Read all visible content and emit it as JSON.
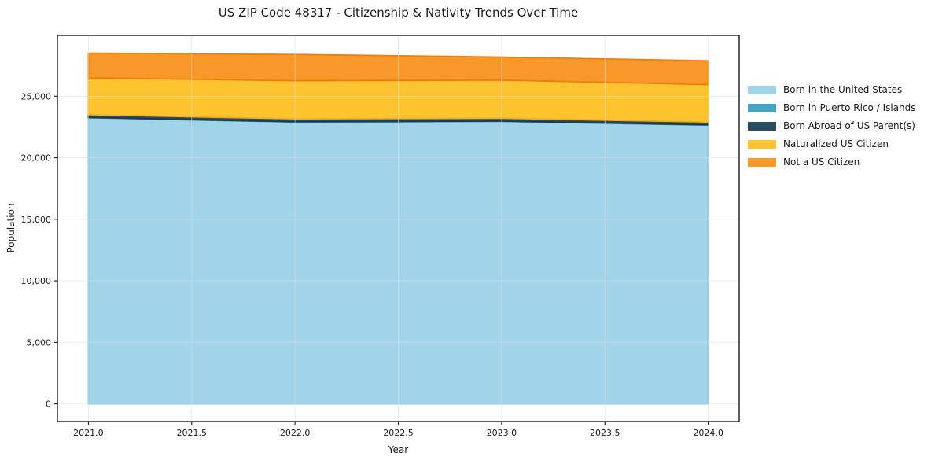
{
  "chart_data": {
    "type": "area",
    "stacked": true,
    "title": "US ZIP Code 48317 - Citizenship & Nativity Trends Over Time",
    "xlabel": "Year",
    "ylabel": "Population",
    "x": [
      2021,
      2022,
      2023,
      2024
    ],
    "series": [
      {
        "name": "Born in the United States",
        "values": [
          23250,
          22900,
          22950,
          22650
        ],
        "fill": "#a1d4e9",
        "edge": "#7fc0dc"
      },
      {
        "name": "Born in Puerto Rico / Islands",
        "values": [
          30,
          30,
          30,
          30
        ],
        "fill": "#45a6c2",
        "edge": "#35899f"
      },
      {
        "name": "Born Abroad of US Parent(s)",
        "values": [
          220,
          230,
          230,
          220
        ],
        "fill": "#2b4c5e",
        "edge": "#21394a"
      },
      {
        "name": "Naturalized US Citizen",
        "values": [
          3000,
          3100,
          3100,
          3050
        ],
        "fill": "#fdc42f",
        "edge": "#f4af14"
      },
      {
        "name": "Not a US Citizen",
        "values": [
          2000,
          2130,
          1870,
          1930
        ],
        "fill": "#f8982b",
        "edge": "#ed7e11"
      }
    ],
    "xlim": [
      2020.85,
      2024.15
    ],
    "ylim": [
      -1430,
      29940
    ],
    "x_ticks": {
      "values": [
        2021.0,
        2021.5,
        2022.0,
        2022.5,
        2023.0,
        2023.5,
        2024.0
      ],
      "labels": [
        "2021.0",
        "2021.5",
        "2022.0",
        "2022.5",
        "2023.0",
        "2023.5",
        "2024.0"
      ]
    },
    "y_ticks": {
      "values": [
        0,
        5000,
        10000,
        15000,
        20000,
        25000
      ],
      "labels": [
        "0",
        "5,000",
        "10,000",
        "15,000",
        "20,000",
        "25,000"
      ]
    },
    "grid": true,
    "legend_position": "outside-right",
    "colors": {
      "frame": "#1a1a1a",
      "grid": "#dcdcdc",
      "tick_text": "#1a1a1a",
      "background": "#ffffff"
    }
  }
}
